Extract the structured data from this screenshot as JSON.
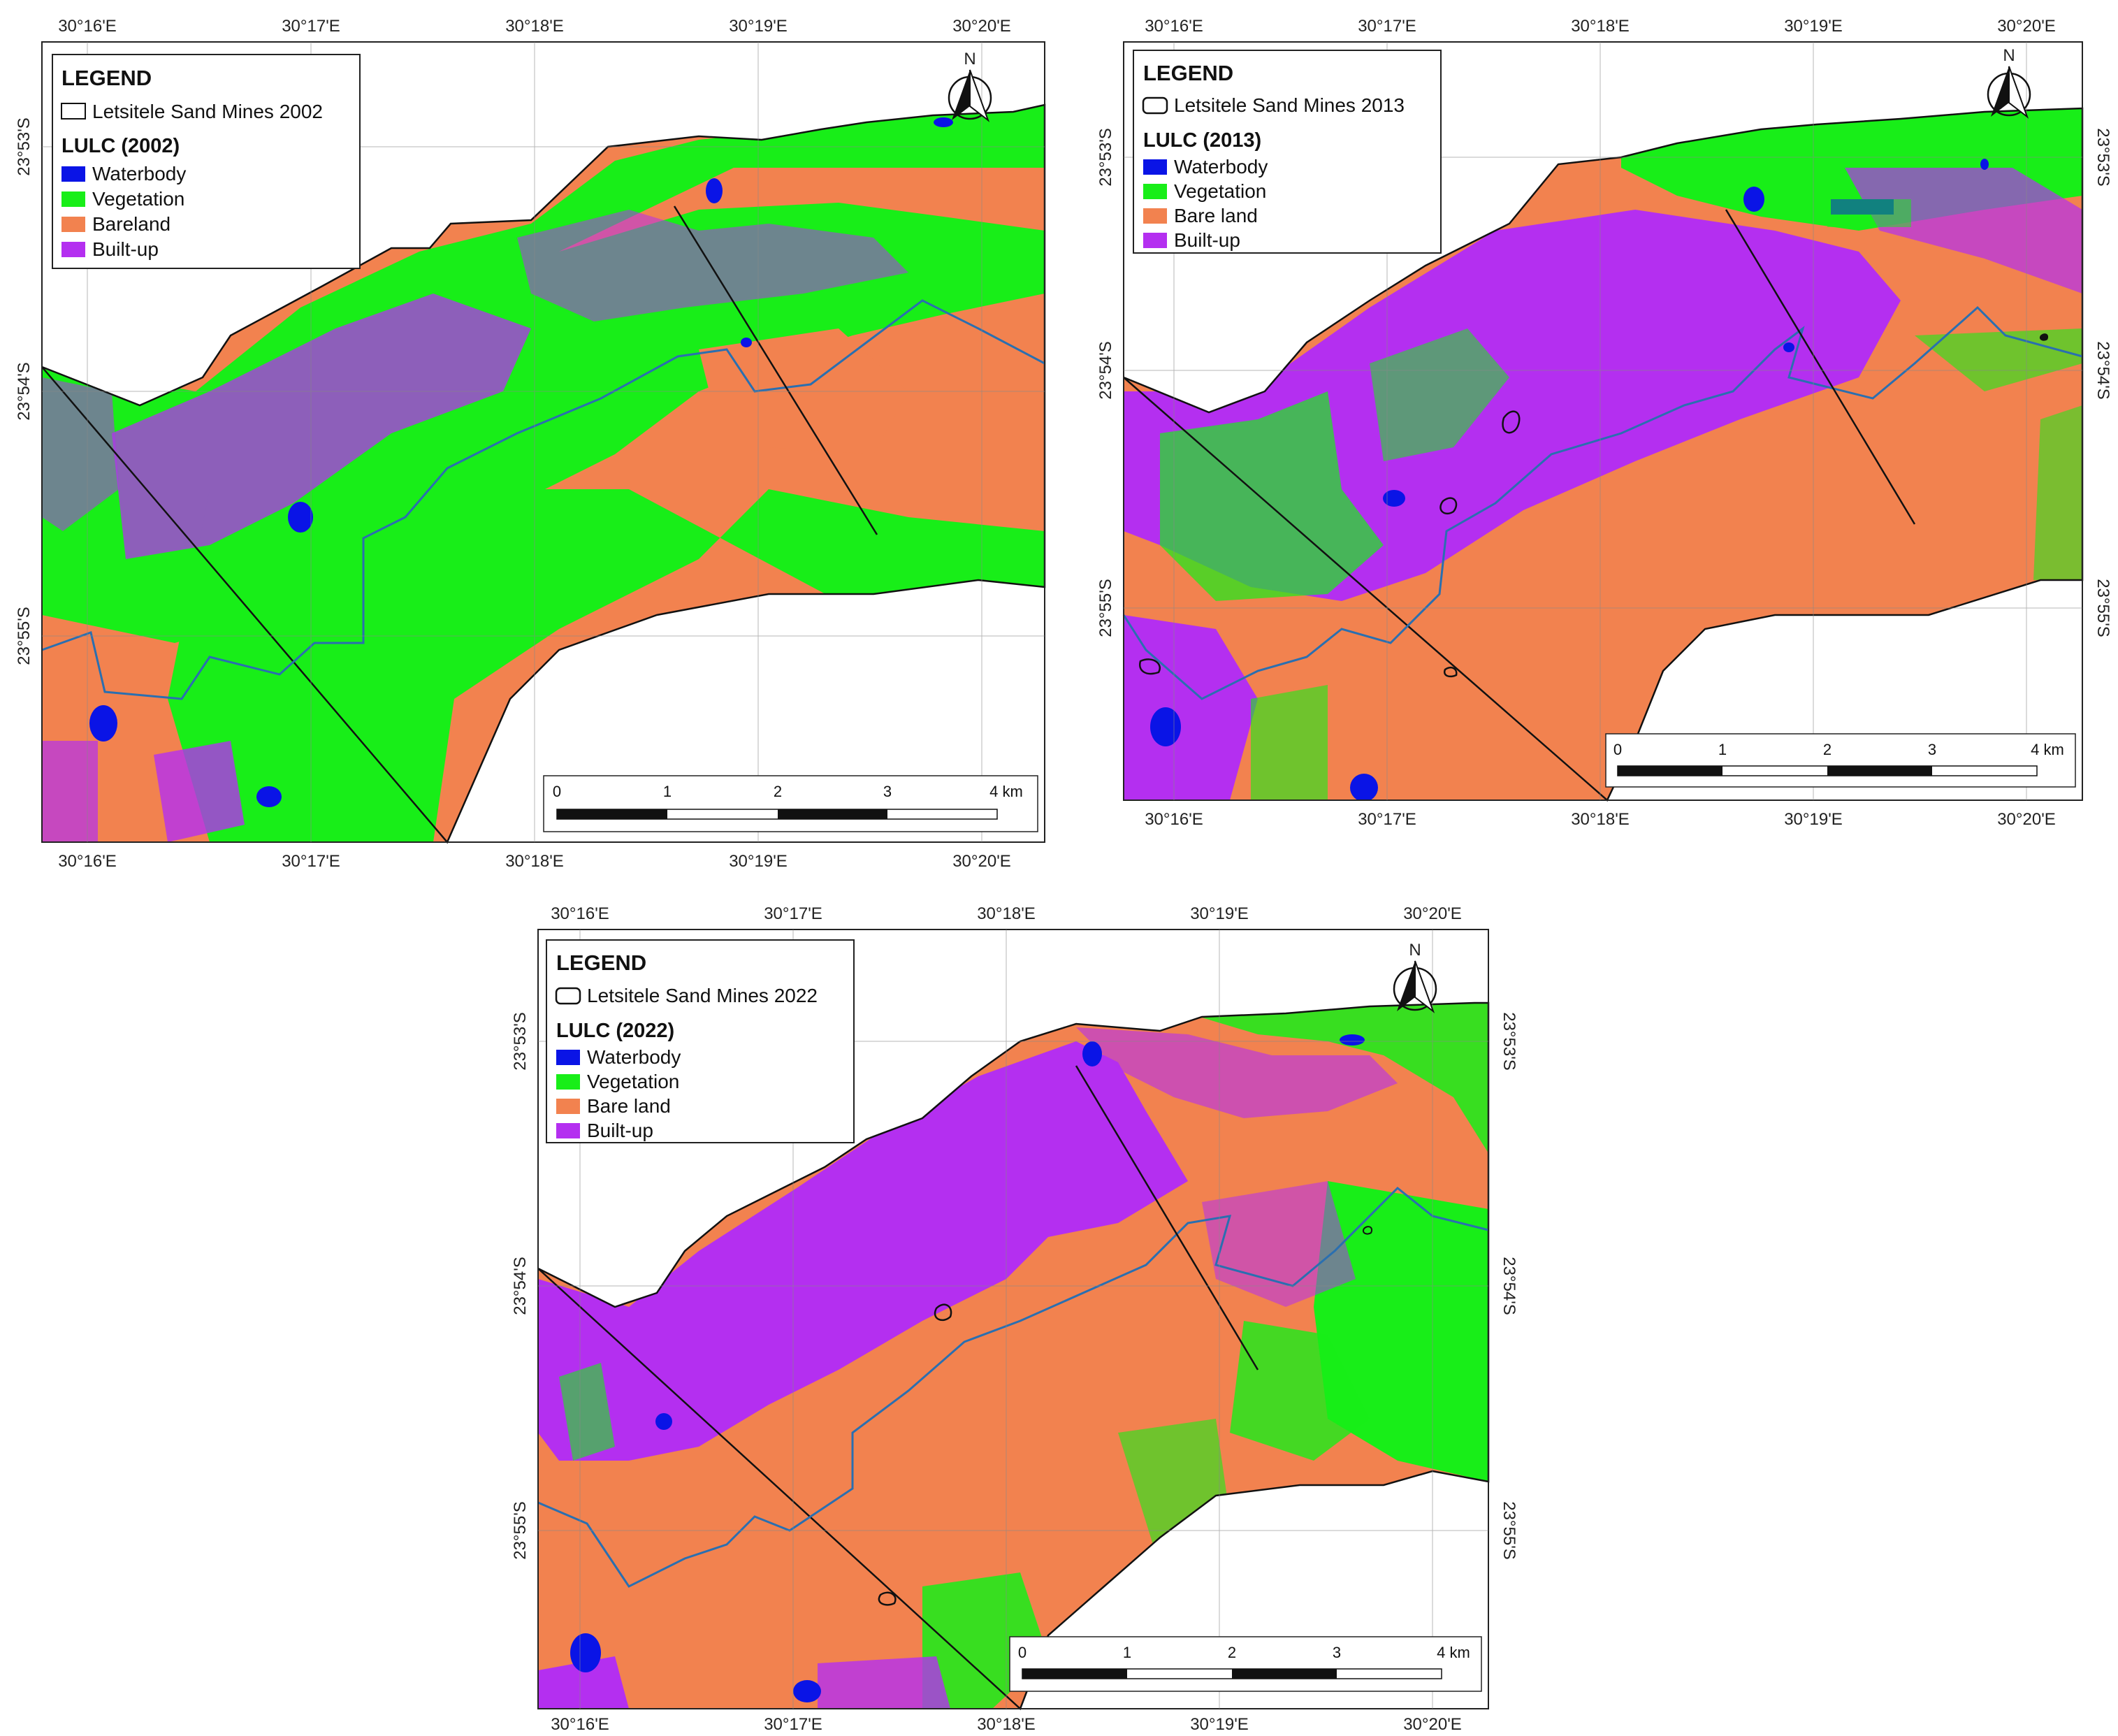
{
  "colors": {
    "waterbody": "#0a14e6",
    "vegetation": "#18ee18",
    "bareland": "#f2824f",
    "builtup": "#b42ff0",
    "river": "#2a6fb0",
    "frame": "#222222"
  },
  "axes": {
    "lon_labels": [
      "30°16'E",
      "30°17'E",
      "30°18'E",
      "30°19'E",
      "30°20'E"
    ],
    "lat_labels": [
      "23°53'S",
      "23°54'S",
      "23°55'S"
    ]
  },
  "north_arrow": {
    "letter": "N",
    "icon": "north-arrow-icon"
  },
  "scale_bar": {
    "labels": [
      "0",
      "1",
      "2",
      "3",
      "4 km"
    ]
  },
  "maps": [
    {
      "id": "2002",
      "legend": {
        "title": "LEGEND",
        "mines_label": "Letsitele Sand Mines 2002",
        "lulc_title": "LULC (2002)",
        "classes": [
          "Waterbody",
          "Vegetation",
          "Bareland",
          "Built-up"
        ]
      }
    },
    {
      "id": "2013",
      "legend": {
        "title": "LEGEND",
        "mines_label": "Letsitele Sand Mines 2013",
        "lulc_title": "LULC (2013)",
        "classes": [
          "Waterbody",
          "Vegetation",
          "Bare land",
          "Built-up"
        ]
      }
    },
    {
      "id": "2022",
      "legend": {
        "title": "LEGEND",
        "mines_label": "Letsitele Sand Mines 2022",
        "lulc_title": "LULC (2022)",
        "classes": [
          "Waterbody",
          "Vegetation",
          "Bare land",
          "Built-up"
        ]
      }
    }
  ]
}
